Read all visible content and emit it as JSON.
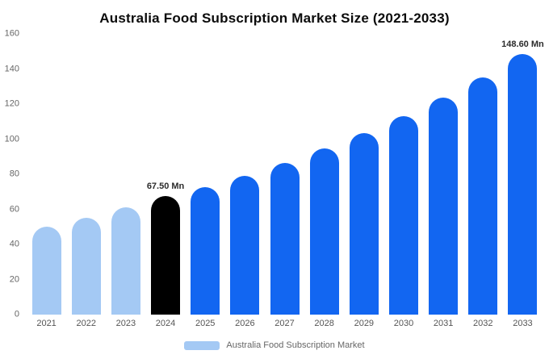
{
  "title": "Australia Food Subscription Market Size (2021-2033)",
  "legend": {
    "label": "Australia Food Subscription Market",
    "swatch_color": "#a4c9f4"
  },
  "colors": {
    "light_blue": "#a4c9f4",
    "primary_blue": "#1266f1",
    "highlight_black": "#000000"
  },
  "chart_data": {
    "type": "bar",
    "title": "Australia Food Subscription Market Size (2021-2033)",
    "xlabel": "",
    "ylabel": "",
    "ylim": [
      0,
      160
    ],
    "yticks": [
      0,
      20,
      40,
      60,
      80,
      100,
      120,
      140,
      160
    ],
    "grid": false,
    "legend_position": "bottom",
    "categories": [
      "2021",
      "2022",
      "2023",
      "2024",
      "2025",
      "2026",
      "2027",
      "2028",
      "2029",
      "2030",
      "2031",
      "2032",
      "2033"
    ],
    "values": [
      50,
      55,
      61,
      67.5,
      72.5,
      79,
      86.5,
      94.5,
      103.5,
      113,
      123.5,
      135,
      148.6
    ],
    "bar_colors": [
      "#a4c9f4",
      "#a4c9f4",
      "#a4c9f4",
      "#000000",
      "#1266f1",
      "#1266f1",
      "#1266f1",
      "#1266f1",
      "#1266f1",
      "#1266f1",
      "#1266f1",
      "#1266f1",
      "#1266f1"
    ],
    "annotations": [
      {
        "index": 3,
        "text": "67.50 Mn"
      },
      {
        "index": 12,
        "text": "148.60 Mn"
      }
    ]
  }
}
